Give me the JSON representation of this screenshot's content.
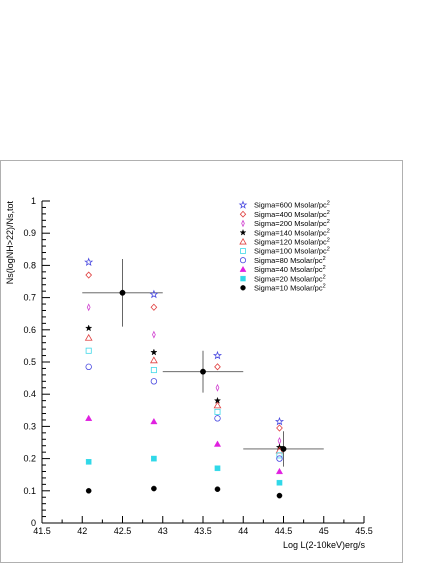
{
  "chart_data": {
    "type": "scatter",
    "xlabel": "Log L(2-10keV)erg/s",
    "ylabel": "Ns(logNH>22)/Ns,tot",
    "xlim": [
      41.5,
      45.5
    ],
    "ylim": [
      0,
      1
    ],
    "x_ticks": [
      "41.5",
      "42",
      "42.5",
      "43",
      "43.5",
      "44",
      "44.5",
      "45",
      "45.5"
    ],
    "y_ticks": [
      "0",
      "0.1",
      "0.2",
      "0.3",
      "0.4",
      "0.5",
      "0.6",
      "0.7",
      "0.8",
      "0.9",
      "1"
    ],
    "x_tick_values": [
      41.5,
      42,
      42.5,
      43,
      43.5,
      44,
      44.5,
      45,
      45.5
    ],
    "y_tick_values": [
      0,
      0.1,
      0.2,
      0.3,
      0.4,
      0.5,
      0.6,
      0.7,
      0.8,
      0.9,
      1
    ],
    "series": [
      {
        "name": "Sigma=600 Msolar/pc",
        "unit_sup": "2",
        "marker": "open-star",
        "color": "#4a4ae0",
        "x": [
          42.08,
          42.89,
          43.68,
          44.45
        ],
        "y": [
          0.81,
          0.71,
          0.52,
          0.315
        ]
      },
      {
        "name": "Sigma=400 Msolar/pc",
        "unit_sup": "2",
        "marker": "open-diamond",
        "color": "#e04040",
        "x": [
          42.08,
          42.89,
          43.68,
          44.45
        ],
        "y": [
          0.77,
          0.67,
          0.485,
          0.295
        ]
      },
      {
        "name": "Sigma=200 Msolar/pc",
        "unit_sup": "2",
        "marker": "thin-diamond",
        "color": "#d040d0",
        "x": [
          42.08,
          42.89,
          43.68,
          44.45
        ],
        "y": [
          0.67,
          0.585,
          0.42,
          0.255
        ]
      },
      {
        "name": "Sigma=140 Msolar/pc",
        "unit_sup": "2",
        "marker": "filled-star",
        "color": "#000000",
        "x": [
          42.08,
          42.89,
          43.68,
          44.45
        ],
        "y": [
          0.605,
          0.53,
          0.38,
          0.235
        ]
      },
      {
        "name": "Sigma=120 Msolar/pc",
        "unit_sup": "2",
        "marker": "open-triangle",
        "color": "#e04040",
        "x": [
          42.08,
          42.89,
          43.68,
          44.45
        ],
        "y": [
          0.575,
          0.505,
          0.365,
          0.225
        ]
      },
      {
        "name": "Sigma=100 Msolar/pc",
        "unit_sup": "2",
        "marker": "open-square",
        "color": "#40d8e8",
        "x": [
          42.08,
          42.89,
          43.68,
          44.45
        ],
        "y": [
          0.535,
          0.475,
          0.345,
          0.21
        ]
      },
      {
        "name": "Sigma=80 Msolar/pc",
        "unit_sup": "2",
        "marker": "open-circle",
        "color": "#4a4ae0",
        "x": [
          42.08,
          42.89,
          43.68,
          44.45
        ],
        "y": [
          0.485,
          0.44,
          0.325,
          0.2
        ]
      },
      {
        "name": "Sigma=40 Msolar/pc",
        "unit_sup": "2",
        "marker": "filled-triangle",
        "color": "#e020e0",
        "x": [
          42.08,
          42.89,
          43.68,
          44.45
        ],
        "y": [
          0.325,
          0.315,
          0.245,
          0.16
        ]
      },
      {
        "name": "Sigma=20 Msolar/pc",
        "unit_sup": "2",
        "marker": "filled-square",
        "color": "#30d8e8",
        "x": [
          42.08,
          42.89,
          43.68,
          44.45
        ],
        "y": [
          0.19,
          0.2,
          0.17,
          0.125
        ]
      },
      {
        "name": "Sigma=10 Msolar/pc",
        "unit_sup": "2",
        "marker": "filled-circle",
        "color": "#000000",
        "x": [
          42.08,
          42.89,
          43.68,
          44.45
        ],
        "y": [
          0.1,
          0.107,
          0.105,
          0.085
        ]
      }
    ],
    "observed": {
      "marker": "filled-circle",
      "color": "#000000",
      "points": [
        {
          "x": 42.5,
          "y": 0.715,
          "xerr": [
            42.0,
            43.0
          ],
          "yerr": [
            0.61,
            0.82
          ]
        },
        {
          "x": 43.5,
          "y": 0.47,
          "xerr": [
            43.0,
            44.0
          ],
          "yerr": [
            0.405,
            0.535
          ]
        },
        {
          "x": 44.5,
          "y": 0.23,
          "xerr": [
            44.0,
            45.0
          ],
          "yerr": [
            0.175,
            0.285
          ]
        }
      ]
    },
    "legend_position": "top-right",
    "grid": false
  }
}
